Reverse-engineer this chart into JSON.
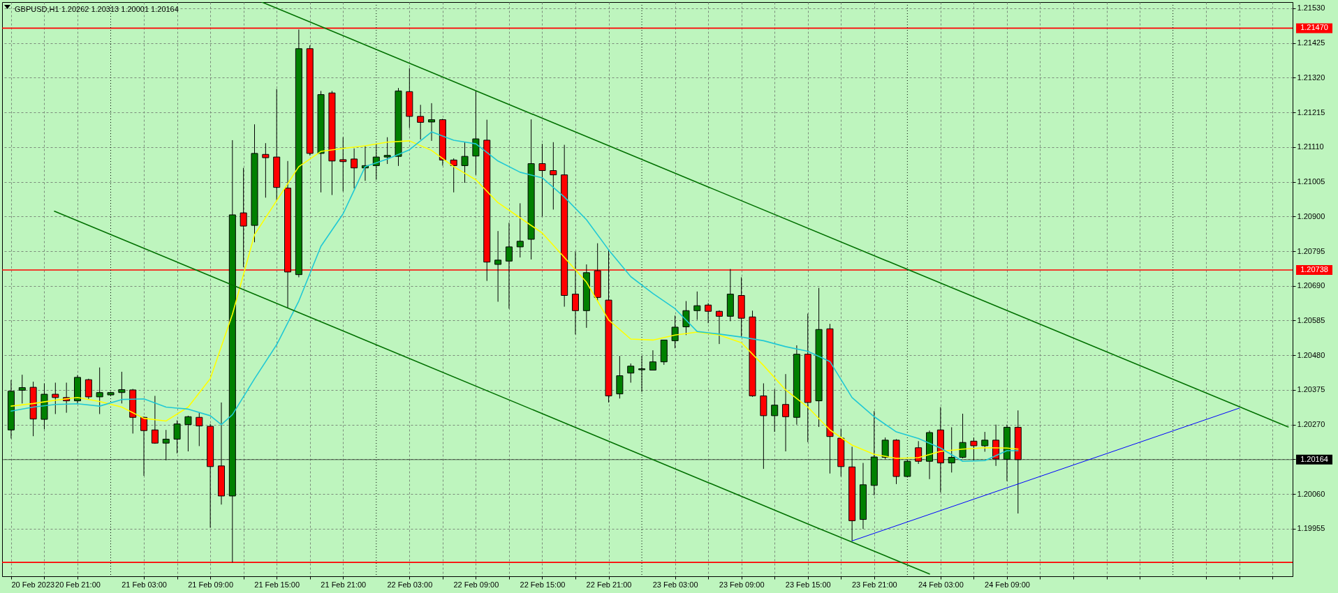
{
  "chart_data": {
    "type": "candlestick",
    "title": "GBPUSD,H1  1.20262 1.20313 1.20001 1.20164",
    "x": [
      "2023-02-20T15:00",
      "2023-02-20T16:00",
      "2023-02-20T17:00",
      "2023-02-20T18:00",
      "2023-02-20T19:00",
      "2023-02-20T20:00",
      "2023-02-20T21:00",
      "2023-02-20T22:00",
      "2023-02-20T23:00",
      "2023-02-21T00:00",
      "2023-02-21T01:00",
      "2023-02-21T02:00",
      "2023-02-21T03:00",
      "2023-02-21T04:00",
      "2023-02-21T05:00",
      "2023-02-21T06:00",
      "2023-02-21T07:00",
      "2023-02-21T08:00",
      "2023-02-21T09:00",
      "2023-02-21T10:00",
      "2023-02-21T11:00",
      "2023-02-21T12:00",
      "2023-02-21T13:00",
      "2023-02-21T14:00",
      "2023-02-21T15:00",
      "2023-02-21T16:00",
      "2023-02-21T17:00",
      "2023-02-21T18:00",
      "2023-02-21T19:00",
      "2023-02-21T20:00",
      "2023-02-21T21:00",
      "2023-02-21T22:00",
      "2023-02-21T23:00",
      "2023-02-22T00:00",
      "2023-02-22T01:00",
      "2023-02-22T02:00",
      "2023-02-22T03:00",
      "2023-02-22T04:00",
      "2023-02-22T05:00",
      "2023-02-22T06:00",
      "2023-02-22T07:00",
      "2023-02-22T08:00",
      "2023-02-22T09:00",
      "2023-02-22T10:00",
      "2023-02-22T11:00",
      "2023-02-22T12:00",
      "2023-02-22T13:00",
      "2023-02-22T14:00",
      "2023-02-22T15:00",
      "2023-02-22T16:00",
      "2023-02-22T17:00",
      "2023-02-22T18:00",
      "2023-02-22T19:00",
      "2023-02-22T20:00",
      "2023-02-22T21:00",
      "2023-02-22T22:00",
      "2023-02-22T23:00",
      "2023-02-23T00:00",
      "2023-02-23T01:00",
      "2023-02-23T02:00",
      "2023-02-23T03:00",
      "2023-02-23T04:00",
      "2023-02-23T05:00",
      "2023-02-23T06:00",
      "2023-02-23T07:00",
      "2023-02-23T08:00",
      "2023-02-23T09:00",
      "2023-02-23T10:00",
      "2023-02-23T11:00",
      "2023-02-23T12:00",
      "2023-02-23T13:00",
      "2023-02-23T14:00",
      "2023-02-23T15:00",
      "2023-02-23T16:00",
      "2023-02-23T17:00",
      "2023-02-23T18:00",
      "2023-02-23T19:00",
      "2023-02-23T20:00",
      "2023-02-23T21:00",
      "2023-02-23T22:00",
      "2023-02-23T23:00",
      "2023-02-24T00:00",
      "2023-02-24T01:00",
      "2023-02-24T02:00",
      "2023-02-24T03:00",
      "2023-02-24T04:00",
      "2023-02-24T05:00",
      "2023-02-24T06:00",
      "2023-02-24T07:00",
      "2023-02-24T08:00",
      "2023-02-24T09:00",
      "2023-02-24T10:00"
    ],
    "ohlc": [
      [
        1.20254,
        1.20405,
        1.20228,
        1.20371
      ],
      [
        1.20374,
        1.20421,
        1.20334,
        1.20382
      ],
      [
        1.20383,
        1.204,
        1.20235,
        1.20287
      ],
      [
        1.20286,
        1.20395,
        1.20256,
        1.20362
      ],
      [
        1.20362,
        1.20397,
        1.20302,
        1.20352
      ],
      [
        1.20352,
        1.20397,
        1.20306,
        1.20342
      ],
      [
        1.20342,
        1.2042,
        1.20333,
        1.20413
      ],
      [
        1.20406,
        1.20409,
        1.20346,
        1.20354
      ],
      [
        1.20354,
        1.20443,
        1.20302,
        1.20367
      ],
      [
        1.2036,
        1.2037,
        1.20357,
        1.20367
      ],
      [
        1.20367,
        1.2043,
        1.20334,
        1.20376
      ],
      [
        1.20375,
        1.20378,
        1.20243,
        1.20292
      ],
      [
        1.20292,
        1.20294,
        1.20115,
        1.20252
      ],
      [
        1.20254,
        1.20357,
        1.20212,
        1.20214
      ],
      [
        1.20214,
        1.20254,
        1.20162,
        1.20226
      ],
      [
        1.20226,
        1.20283,
        1.20183,
        1.20272
      ],
      [
        1.2027,
        1.20297,
        1.20189,
        1.20294
      ],
      [
        1.20292,
        1.20306,
        1.20205,
        1.20266
      ],
      [
        1.20265,
        1.20272,
        1.19958,
        1.20143
      ],
      [
        1.20145,
        1.20337,
        1.20028,
        1.20054
      ],
      [
        1.20054,
        1.21131,
        1.19853,
        1.20905
      ],
      [
        1.20911,
        1.21047,
        1.20747,
        1.20871
      ],
      [
        1.20873,
        1.21179,
        1.20822,
        1.21091
      ],
      [
        1.21088,
        1.21122,
        1.20957,
        1.21078
      ],
      [
        1.2108,
        1.21286,
        1.20948,
        1.20988
      ],
      [
        1.20986,
        1.21068,
        1.20624,
        1.20732
      ],
      [
        1.20724,
        1.21466,
        1.20716,
        1.21408
      ],
      [
        1.21408,
        1.21418,
        1.21085,
        1.21091
      ],
      [
        1.21091,
        1.2128,
        1.20973,
        1.21269
      ],
      [
        1.21274,
        1.2128,
        1.20965,
        1.21068
      ],
      [
        1.21072,
        1.2114,
        1.20976,
        1.21066
      ],
      [
        1.21074,
        1.21106,
        1.20985,
        1.21047
      ],
      [
        1.21047,
        1.21114,
        1.21008,
        1.21054
      ],
      [
        1.21054,
        1.2112,
        1.21011,
        1.2108
      ],
      [
        1.2108,
        1.2114,
        1.21059,
        1.21085
      ],
      [
        1.21082,
        1.21289,
        1.21053,
        1.2128
      ],
      [
        1.21278,
        1.21349,
        1.21168,
        1.21203
      ],
      [
        1.21203,
        1.21238,
        1.21133,
        1.21185
      ],
      [
        1.21186,
        1.21243,
        1.21129,
        1.21193
      ],
      [
        1.21193,
        1.21196,
        1.21054,
        1.21071
      ],
      [
        1.21071,
        1.21076,
        1.20973,
        1.21054
      ],
      [
        1.21054,
        1.21125,
        1.21002,
        1.21082
      ],
      [
        1.21083,
        1.2128,
        1.21026,
        1.21135
      ],
      [
        1.21131,
        1.21193,
        1.20705,
        1.20762
      ],
      [
        1.20755,
        1.20856,
        1.20642,
        1.20768
      ],
      [
        1.20765,
        1.20881,
        1.20621,
        1.20808
      ],
      [
        1.20808,
        1.2094,
        1.20776,
        1.20825
      ],
      [
        1.20831,
        1.21194,
        1.2077,
        1.2106
      ],
      [
        1.2106,
        1.2112,
        1.209,
        1.21039
      ],
      [
        1.21039,
        1.21125,
        1.20921,
        1.21026
      ],
      [
        1.21026,
        1.21117,
        1.20627,
        1.20661
      ],
      [
        1.20665,
        1.20793,
        1.20543,
        1.20615
      ],
      [
        1.20615,
        1.20755,
        1.20563,
        1.2073
      ],
      [
        1.20736,
        1.20819,
        1.20644,
        1.20655
      ],
      [
        1.20647,
        1.20799,
        1.20337,
        1.20357
      ],
      [
        1.20363,
        1.20478,
        1.20349,
        1.20418
      ],
      [
        1.20426,
        1.20455,
        1.20397,
        1.20447
      ],
      [
        1.20436,
        1.20478,
        1.20369,
        1.20439
      ],
      [
        1.20435,
        1.20495,
        1.20435,
        1.2046
      ],
      [
        1.2046,
        1.20526,
        1.20451,
        1.20526
      ],
      [
        1.20524,
        1.206,
        1.20501,
        1.20565
      ],
      [
        1.20566,
        1.20644,
        1.20541,
        1.20615
      ],
      [
        1.20615,
        1.20673,
        1.20587,
        1.2063
      ],
      [
        1.20632,
        1.20638,
        1.20577,
        1.20613
      ],
      [
        1.20613,
        1.20616,
        1.20514,
        1.20598
      ],
      [
        1.20598,
        1.20741,
        1.20583,
        1.20665
      ],
      [
        1.20661,
        1.20716,
        1.20535,
        1.20592
      ],
      [
        1.20596,
        1.20615,
        1.20354,
        1.20357
      ],
      [
        1.20357,
        1.20395,
        1.20136,
        1.20297
      ],
      [
        1.20297,
        1.20377,
        1.20248,
        1.20329
      ],
      [
        1.20331,
        1.20423,
        1.20189,
        1.20294
      ],
      [
        1.20292,
        1.2051,
        1.2027,
        1.20483
      ],
      [
        1.20483,
        1.20606,
        1.20217,
        1.20337
      ],
      [
        1.20342,
        1.20684,
        1.20263,
        1.20558
      ],
      [
        1.2056,
        1.20575,
        1.20122,
        1.20234
      ],
      [
        1.20229,
        1.20258,
        1.20113,
        1.20143
      ],
      [
        1.20142,
        1.20203,
        1.19918,
        1.19979
      ],
      [
        1.19983,
        1.20154,
        1.19954,
        1.20088
      ],
      [
        1.20086,
        1.20311,
        1.20056,
        1.20172
      ],
      [
        1.20171,
        1.20231,
        1.20166,
        1.20223
      ],
      [
        1.20223,
        1.20226,
        1.2009,
        1.20113
      ],
      [
        1.20113,
        1.20162,
        1.2011,
        1.20159
      ],
      [
        1.202,
        1.2022,
        1.20151,
        1.20159
      ],
      [
        1.20159,
        1.20252,
        1.20105,
        1.20246
      ],
      [
        1.20254,
        1.20323,
        1.20065,
        1.20154
      ],
      [
        1.20154,
        1.20262,
        1.20125,
        1.20171
      ],
      [
        1.20171,
        1.20303,
        1.20168,
        1.20216
      ],
      [
        1.2022,
        1.20231,
        1.20162,
        1.20206
      ],
      [
        1.20206,
        1.20248,
        1.20188,
        1.20223
      ],
      [
        1.20223,
        1.2027,
        1.20145,
        1.20166
      ],
      [
        1.20165,
        1.2027,
        1.20099,
        1.20262
      ],
      [
        1.20262,
        1.20313,
        1.20001,
        1.20164
      ]
    ],
    "colors": [
      "#008000",
      "#008000",
      "#ff0000",
      "#008000",
      "#ff0000",
      "#ff0000",
      "#008000",
      "#ff0000",
      "#008000",
      "#008000",
      "#008000",
      "#ff0000",
      "#ff0000",
      "#ff0000",
      "#008000",
      "#008000",
      "#008000",
      "#ff0000",
      "#ff0000",
      "#ff0000",
      "#008000",
      "#ff0000",
      "#008000",
      "#ff0000",
      "#ff0000",
      "#ff0000",
      "#008000",
      "#ff0000",
      "#008000",
      "#ff0000",
      "#ff0000",
      "#ff0000",
      "#008000",
      "#008000",
      "#008000",
      "#008000",
      "#ff0000",
      "#ff0000",
      "#008000",
      "#ff0000",
      "#ff0000",
      "#008000",
      "#008000",
      "#ff0000",
      "#008000",
      "#008000",
      "#008000",
      "#008000",
      "#ff0000",
      "#ff0000",
      "#ff0000",
      "#ff0000",
      "#008000",
      "#ff0000",
      "#ff0000",
      "#008000",
      "#008000",
      "#008000",
      "#008000",
      "#008000",
      "#008000",
      "#008000",
      "#008000",
      "#ff0000",
      "#ff0000",
      "#008000",
      "#ff0000",
      "#ff0000",
      "#ff0000",
      "#008000",
      "#ff0000",
      "#008000",
      "#ff0000",
      "#008000",
      "#ff0000",
      "#ff0000",
      "#ff0000",
      "#008000",
      "#008000",
      "#008000",
      "#ff0000",
      "#008000",
      "#ff0000",
      "#008000",
      "#ff0000",
      "#008000",
      "#008000",
      "#ff0000",
      "#008000",
      "#ff0000",
      "#008000",
      "#ff0000"
    ],
    "series": [
      {
        "type": "line",
        "color": "#ffff00",
        "x": [
          "2023-02-20T15:00",
          "2023-02-20T17:00",
          "2023-02-20T19:00",
          "2023-02-20T21:00",
          "2023-02-20T23:00",
          "2023-02-21T01:00",
          "2023-02-21T03:00",
          "2023-02-21T05:00",
          "2023-02-21T07:00",
          "2023-02-21T09:00",
          "2023-02-21T11:00",
          "2023-02-21T13:00",
          "2023-02-21T15:00",
          "2023-02-21T17:00",
          "2023-02-21T19:00",
          "2023-02-21T21:00",
          "2023-02-21T23:00",
          "2023-02-22T01:00",
          "2023-02-22T03:00",
          "2023-02-22T05:00",
          "2023-02-22T07:00",
          "2023-02-22T09:00",
          "2023-02-22T11:00",
          "2023-02-22T13:00",
          "2023-02-22T15:00",
          "2023-02-22T17:00",
          "2023-02-22T19:00",
          "2023-02-22T21:00",
          "2023-02-22T23:00",
          "2023-02-23T01:00",
          "2023-02-23T03:00",
          "2023-02-23T05:00",
          "2023-02-23T07:00",
          "2023-02-23T09:00",
          "2023-02-23T11:00",
          "2023-02-23T13:00",
          "2023-02-23T15:00",
          "2023-02-23T17:00",
          "2023-02-23T19:00",
          "2023-02-23T21:00",
          "2023-02-23T23:00",
          "2023-02-24T01:00",
          "2023-02-24T03:00",
          "2023-02-24T05:00",
          "2023-02-24T07:00",
          "2023-02-24T09:00",
          "2023-02-24T10:00"
        ],
        "values": [
          1.20326,
          1.20334,
          1.20344,
          1.20352,
          1.2034,
          1.20323,
          1.20289,
          1.20281,
          1.20323,
          1.20409,
          1.20604,
          1.20845,
          1.20948,
          1.21051,
          1.21097,
          1.21106,
          1.21114,
          1.21125,
          1.21129,
          1.211,
          1.21051,
          1.21011,
          1.20942,
          1.20896,
          1.2085,
          1.20776,
          1.20701,
          1.20587,
          1.20529,
          1.20526,
          1.20541,
          1.2055,
          1.20541,
          1.20518,
          1.20449,
          1.20375,
          1.20323,
          1.20254,
          1.20208,
          1.2018,
          1.20168,
          1.2017,
          1.20189,
          1.20196,
          1.202,
          1.20199,
          1.20196
        ]
      },
      {
        "type": "line",
        "color": "#20c8d4",
        "x": [
          "2023-02-20T15:00",
          "2023-02-20T17:00",
          "2023-02-20T19:00",
          "2023-02-20T21:00",
          "2023-02-20T23:00",
          "2023-02-21T01:00",
          "2023-02-21T03:00",
          "2023-02-21T05:00",
          "2023-02-21T07:00",
          "2023-02-21T09:00",
          "2023-02-21T10:00",
          "2023-02-21T11:00",
          "2023-02-21T13:00",
          "2023-02-21T15:00",
          "2023-02-21T17:00",
          "2023-02-21T19:00",
          "2023-02-21T21:00",
          "2023-02-21T23:00",
          "2023-02-22T01:00",
          "2023-02-22T03:00",
          "2023-02-22T05:00",
          "2023-02-22T07:00",
          "2023-02-22T09:00",
          "2023-02-22T11:00",
          "2023-02-22T13:00",
          "2023-02-22T15:00",
          "2023-02-22T17:00",
          "2023-02-22T19:00",
          "2023-02-22T21:00",
          "2023-02-22T23:00",
          "2023-02-23T01:00",
          "2023-02-23T03:00",
          "2023-02-23T05:00",
          "2023-02-23T07:00",
          "2023-02-23T09:00",
          "2023-02-23T11:00",
          "2023-02-23T13:00",
          "2023-02-23T15:00",
          "2023-02-23T17:00",
          "2023-02-23T19:00",
          "2023-02-23T21:00",
          "2023-02-23T23:00",
          "2023-02-24T01:00",
          "2023-02-24T03:00",
          "2023-02-24T05:00",
          "2023-02-24T07:00",
          "2023-02-24T09:00",
          "2023-02-24T10:00"
        ],
        "values": [
          1.20311,
          1.20323,
          1.20331,
          1.20333,
          1.20326,
          1.20346,
          1.20348,
          1.20323,
          1.20317,
          1.20297,
          1.2027,
          1.203,
          1.20409,
          1.20512,
          1.20644,
          1.2081,
          1.20908,
          1.21051,
          1.21074,
          1.21102,
          1.21156,
          1.21131,
          1.2112,
          1.21068,
          1.21034,
          1.21017,
          1.20959,
          1.2089,
          1.20799,
          1.20718,
          1.20667,
          1.20621,
          1.20552,
          1.20544,
          1.20535,
          1.20524,
          1.20506,
          1.20492,
          1.20461,
          1.20352,
          1.20294,
          1.20248,
          1.20228,
          1.20199,
          1.20159,
          1.20161,
          1.20191,
          1.20191
        ]
      },
      {
        "type": "line",
        "color": "#007000",
        "x": [
          "2023-02-21T13:40",
          "2023-02-23T03:00",
          "2023-02-25T10:25"
        ],
        "values": [
          1.21549,
          1.21031,
          1.20263
        ]
      },
      {
        "type": "line",
        "color": "#007000",
        "x": [
          "2023-02-20T18:55",
          "2023-02-23T15:50",
          "2023-02-24T02:00"
        ],
        "values": [
          1.20916,
          1.19958,
          1.19818
        ]
      },
      {
        "type": "line",
        "color": "#0000ff",
        "x": [
          "2023-02-23T19:00",
          "2023-02-25T06:00"
        ],
        "values": [
          1.19918,
          1.2032
        ]
      }
    ],
    "xlim": [
      "2023-02-20T14:30",
      "2023-02-25T10:30"
    ],
    "ylim": [
      1.19811,
      1.21549
    ],
    "xticks": [
      {
        "value": "2023-02-20T15:00",
        "label": "20 Feb 2023"
      },
      {
        "value": "2023-02-20T18:00",
        "label": null
      },
      {
        "value": "2023-02-20T21:00",
        "label": "20 Feb 21:00"
      },
      {
        "value": "2023-02-21T03:00",
        "label": "21 Feb 03:00"
      },
      {
        "value": "2023-02-21T06:00",
        "label": null
      },
      {
        "value": "2023-02-21T09:00",
        "label": "21 Feb 09:00"
      },
      {
        "value": "2023-02-21T12:00",
        "label": null
      },
      {
        "value": "2023-02-21T15:00",
        "label": "21 Feb 15:00"
      },
      {
        "value": "2023-02-21T18:00",
        "label": null
      },
      {
        "value": "2023-02-21T21:00",
        "label": "21 Feb 21:00"
      },
      {
        "value": "2023-02-22T03:00",
        "label": "22 Feb 03:00"
      },
      {
        "value": "2023-02-22T06:00",
        "label": null
      },
      {
        "value": "2023-02-22T09:00",
        "label": "22 Feb 09:00"
      },
      {
        "value": "2023-02-22T12:00",
        "label": null
      },
      {
        "value": "2023-02-22T15:00",
        "label": "22 Feb 15:00"
      },
      {
        "value": "2023-02-22T18:00",
        "label": null
      },
      {
        "value": "2023-02-22T21:00",
        "label": "22 Feb 21:00"
      },
      {
        "value": "2023-02-23T03:00",
        "label": "23 Feb 03:00"
      },
      {
        "value": "2023-02-23T06:00",
        "label": null
      },
      {
        "value": "2023-02-23T09:00",
        "label": "23 Feb 09:00"
      },
      {
        "value": "2023-02-23T12:00",
        "label": null
      },
      {
        "value": "2023-02-23T15:00",
        "label": "23 Feb 15:00"
      },
      {
        "value": "2023-02-23T18:00",
        "label": null
      },
      {
        "value": "2023-02-23T21:00",
        "label": "23 Feb 21:00"
      },
      {
        "value": "2023-02-24T03:00",
        "label": "24 Feb 03:00"
      },
      {
        "value": "2023-02-24T06:00",
        "label": null
      },
      {
        "value": "2023-02-24T09:00",
        "label": "24 Feb 09:00"
      },
      {
        "value": "2023-02-24T12:00",
        "label": null
      },
      {
        "value": "2023-02-24T15:00",
        "label": null
      },
      {
        "value": "2023-02-24T18:00",
        "label": null
      },
      {
        "value": "2023-02-24T21:00",
        "label": null
      },
      {
        "value": "2023-02-25T03:00",
        "label": null
      },
      {
        "value": "2023-02-25T06:00",
        "label": null
      },
      {
        "value": "2023-02-25T09:00",
        "label": null
      }
    ],
    "yticks": [
      {
        "value": 1.2153,
        "label": "1.21530"
      },
      {
        "value": 1.21425,
        "label": "1.21425"
      },
      {
        "value": 1.2132,
        "label": "1.21320"
      },
      {
        "value": 1.21215,
        "label": "1.21215"
      },
      {
        "value": 1.2111,
        "label": "1.21110"
      },
      {
        "value": 1.21005,
        "label": "1.21005"
      },
      {
        "value": 1.209,
        "label": "1.20900"
      },
      {
        "value": 1.20795,
        "label": "1.20795"
      },
      {
        "value": 1.2069,
        "label": "1.20690"
      },
      {
        "value": 1.20585,
        "label": "1.20585"
      },
      {
        "value": 1.2048,
        "label": "1.20480"
      },
      {
        "value": 1.20375,
        "label": "1.20375"
      },
      {
        "value": 1.2027,
        "label": "1.20270"
      },
      {
        "value": 1.20165,
        "label": null
      },
      {
        "value": 1.2006,
        "label": "1.20060"
      },
      {
        "value": 1.19955,
        "label": "1.19955"
      }
    ],
    "grid": true,
    "ref_lines": [
      {
        "axis": "y",
        "value": 1.2147,
        "label": "1.21470",
        "color": "#ff0000"
      },
      {
        "axis": "y",
        "value": 1.20738,
        "label": "1.20738",
        "color": "#ff0000"
      },
      {
        "axis": "y",
        "value": 1.19853,
        "label": null,
        "color": "#ff0000"
      },
      {
        "axis": "y",
        "value": 1.20164,
        "label": "1.20164",
        "color": "#000000"
      },
      {
        "axis": "x",
        "value": "2023-02-21T00:00",
        "label": null,
        "color": "#000000",
        "line_style": "dotted"
      },
      {
        "axis": "x",
        "value": "2023-02-22T00:00",
        "label": null,
        "color": "#000000",
        "line_style": "dotted"
      },
      {
        "axis": "x",
        "value": "2023-02-23T00:00",
        "label": null,
        "color": "#000000",
        "line_style": "dotted"
      },
      {
        "axis": "x",
        "value": "2023-02-24T00:00",
        "label": null,
        "color": "#000000",
        "line_style": "dotted"
      },
      {
        "axis": "x",
        "value": "2023-02-25T00:00",
        "label": null,
        "color": "#000000",
        "line_style": "dotted"
      }
    ]
  }
}
